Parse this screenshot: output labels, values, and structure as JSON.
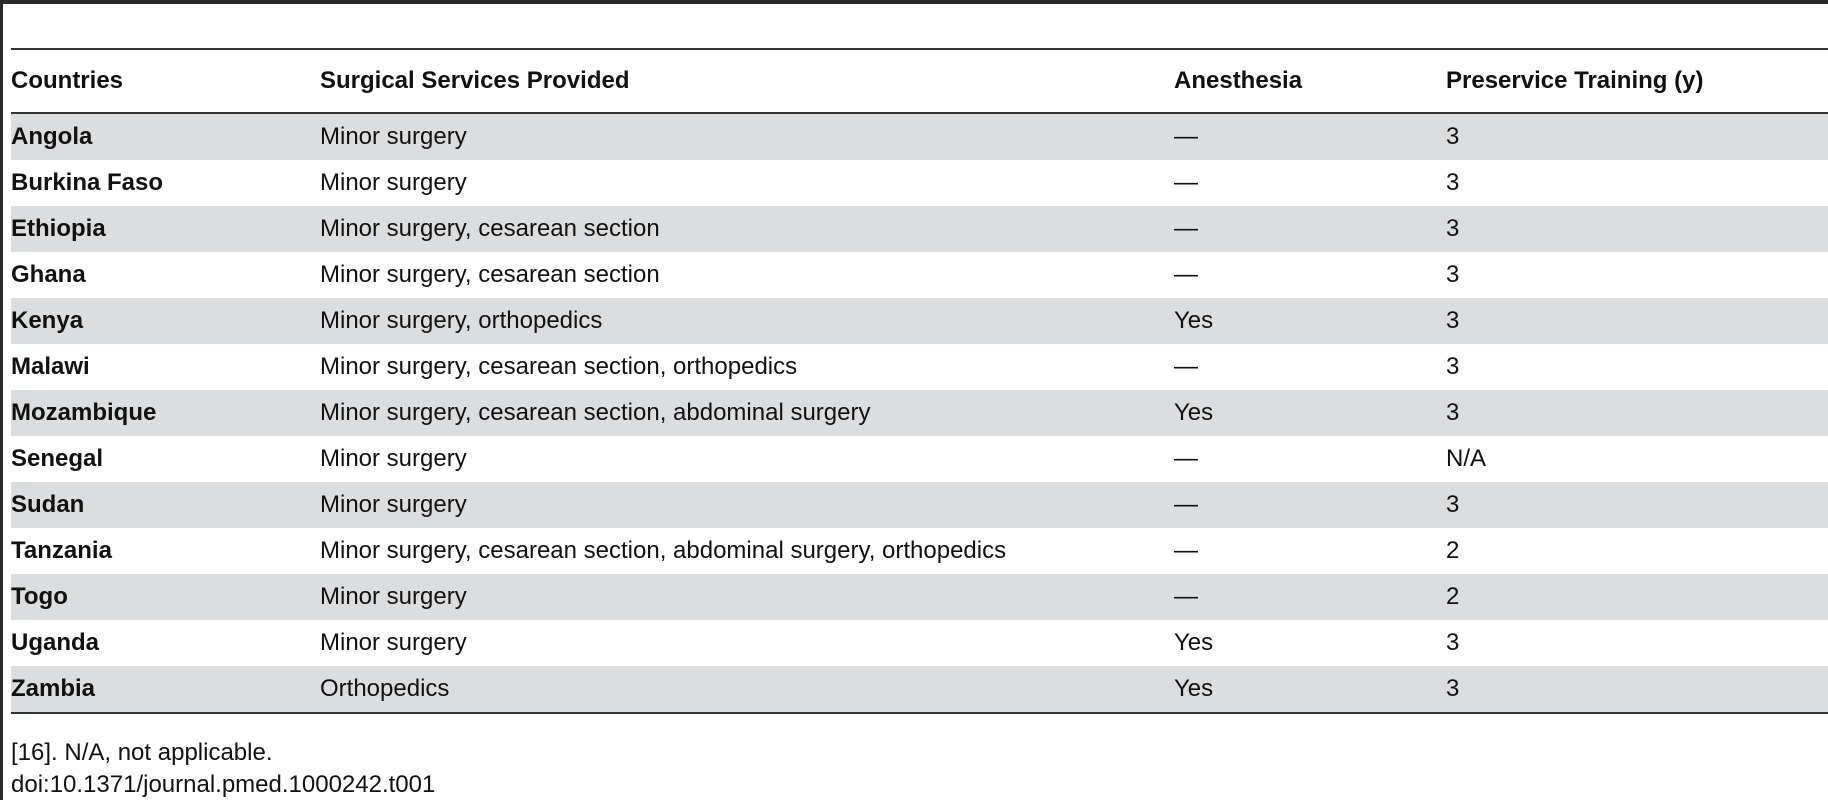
{
  "table": {
    "headers": [
      "Countries",
      "Surgical Services Provided",
      "Anesthesia",
      "Preservice Training (y)"
    ],
    "rows": [
      {
        "country": "Angola",
        "services": "Minor surgery",
        "anesthesia": "—",
        "training": "3"
      },
      {
        "country": "Burkina Faso",
        "services": "Minor surgery",
        "anesthesia": "—",
        "training": "3"
      },
      {
        "country": "Ethiopia",
        "services": "Minor surgery, cesarean section",
        "anesthesia": "—",
        "training": "3"
      },
      {
        "country": "Ghana",
        "services": "Minor surgery, cesarean section",
        "anesthesia": "—",
        "training": "3"
      },
      {
        "country": "Kenya",
        "services": "Minor surgery, orthopedics",
        "anesthesia": "Yes",
        "training": "3"
      },
      {
        "country": "Malawi",
        "services": "Minor surgery, cesarean section, orthopedics",
        "anesthesia": "—",
        "training": "3"
      },
      {
        "country": "Mozambique",
        "services": "Minor surgery, cesarean section, abdominal surgery",
        "anesthesia": "Yes",
        "training": "3"
      },
      {
        "country": "Senegal",
        "services": "Minor surgery",
        "anesthesia": "—",
        "training": "N/A"
      },
      {
        "country": "Sudan",
        "services": "Minor surgery",
        "anesthesia": "—",
        "training": "3"
      },
      {
        "country": "Tanzania",
        "services": "Minor surgery, cesarean section, abdominal surgery, orthopedics",
        "anesthesia": "—",
        "training": "2"
      },
      {
        "country": "Togo",
        "services": "Minor surgery",
        "anesthesia": "—",
        "training": "2"
      },
      {
        "country": "Uganda",
        "services": "Minor surgery",
        "anesthesia": "Yes",
        "training": "3"
      },
      {
        "country": "Zambia",
        "services": "Orthopedics",
        "anesthesia": "Yes",
        "training": "3"
      }
    ]
  },
  "footnote": {
    "note": "[16]. N/A, not applicable.",
    "doi": "doi:10.1371/journal.pmed.1000242.t001"
  },
  "colors": {
    "row_shade": "#dcdddf",
    "rule": "#333333"
  }
}
